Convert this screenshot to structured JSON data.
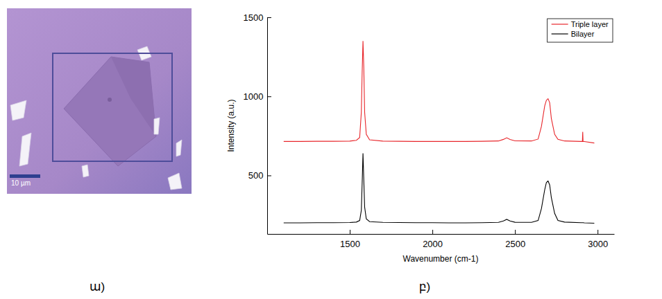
{
  "chart_data": {
    "type": "line",
    "caption": "բ)",
    "x_label": "Wavenumber (cm-1)",
    "y_label": "Intensity (a.u.)",
    "x": [
      1100,
      1200,
      1300,
      1400,
      1500,
      1540,
      1560,
      1570,
      1575,
      1580,
      1585,
      1590,
      1600,
      1620,
      1700,
      1800,
      1900,
      2000,
      2100,
      2200,
      2300,
      2400,
      2430,
      2450,
      2470,
      2500,
      2600,
      2640,
      2660,
      2680,
      2690,
      2700,
      2710,
      2720,
      2740,
      2760,
      2800,
      2900,
      2908,
      2910,
      2912,
      2920,
      2980
    ],
    "series": [
      {
        "name": "Triple layer",
        "color": "#e8262b",
        "values": [
          715,
          715,
          716,
          716,
          717,
          722,
          740,
          900,
          1150,
          1350,
          1180,
          900,
          760,
          725,
          717,
          716,
          715,
          715,
          715,
          715,
          716,
          718,
          728,
          738,
          727,
          719,
          718,
          730,
          810,
          940,
          975,
          985,
          960,
          860,
          760,
          728,
          718,
          715,
          715,
          775,
          715,
          714,
          705
        ]
      },
      {
        "name": "Bilayer",
        "color": "#000000",
        "values": [
          200,
          200,
          201,
          201,
          202,
          205,
          215,
          280,
          450,
          640,
          470,
          300,
          225,
          208,
          203,
          202,
          201,
          201,
          200,
          200,
          201,
          203,
          212,
          222,
          212,
          204,
          203,
          215,
          290,
          410,
          455,
          465,
          440,
          360,
          260,
          215,
          205,
          201,
          201,
          201,
          201,
          200,
          198
        ]
      }
    ],
    "xlim": [
      1000,
      3100
    ],
    "ylim": [
      130,
      1500
    ],
    "xticks": [
      1500,
      2000,
      2500,
      3000
    ],
    "yticks": [
      500,
      1000,
      1500
    ],
    "legend": "upper right",
    "grid": false
  },
  "image_panel": {
    "caption": "ա)",
    "scale_bar_label": "10 µm"
  }
}
